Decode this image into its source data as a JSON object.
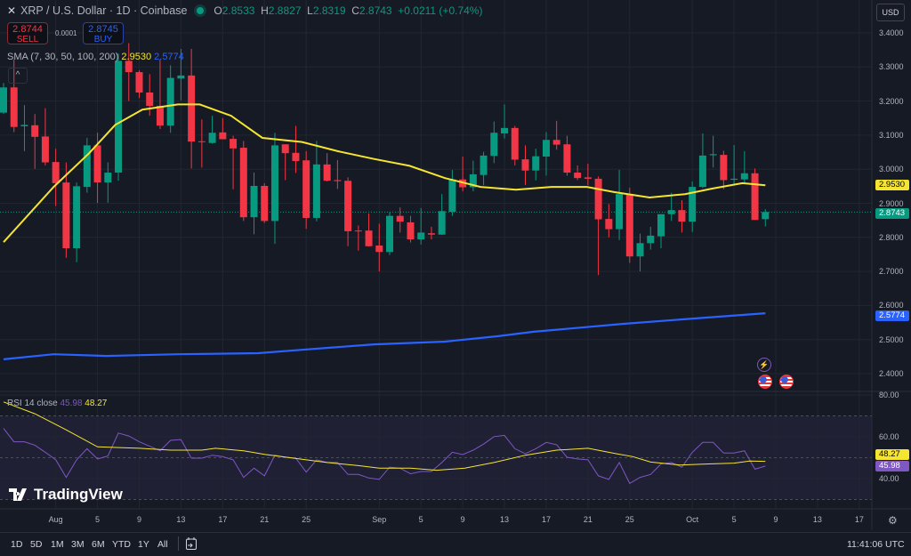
{
  "header": {
    "symbol_title": "XRP / U.S. Dollar · 1D · Coinbase",
    "ohlc": {
      "o_label": "O",
      "o": "2.8533",
      "h_label": "H",
      "h": "2.8827",
      "l_label": "L",
      "l": "2.8319",
      "c_label": "C",
      "c": "2.8743",
      "change": "+0.0211 (+0.74%)"
    },
    "sell": {
      "price": "2.8744",
      "label": "SELL"
    },
    "buy": {
      "price": "2.8745",
      "label": "BUY"
    },
    "spread": "0.0001",
    "sma_legend": {
      "label": "SMA (7, 30, 50, 100, 200)",
      "v1": "2.9530",
      "v2": "2.5774"
    },
    "collapse_icon": "chevron-up-icon",
    "currency": "USD"
  },
  "rsi_legend": {
    "label": "RSI 14 close",
    "rsi": "45.98",
    "ma": "48.27"
  },
  "colors": {
    "up": "#089981",
    "down": "#f23645",
    "sma_short": "#f5e531",
    "sma_long": "#2962ff",
    "rsi": "#7e57c2",
    "rsi_ma": "#f5e531",
    "background": "#161a25"
  },
  "price_axis": {
    "labels": [
      "3.4000",
      "3.3000",
      "3.2000",
      "3.1000",
      "3.0000",
      "2.9000",
      "2.8000",
      "2.7000",
      "2.6000",
      "2.5000",
      "2.4000"
    ],
    "tags": [
      {
        "value": "2.9530",
        "color": "#f5e531",
        "text_color": "#000000"
      },
      {
        "value": "2.8743",
        "color": "#089981",
        "text_color": "#ffffff"
      },
      {
        "value": "2.5774",
        "color": "#2962ff",
        "text_color": "#ffffff"
      }
    ]
  },
  "rsi_axis": {
    "labels": [
      "80.00",
      "60.00",
      "40.00"
    ],
    "tags": [
      {
        "value": "48.27",
        "color": "#f5e531",
        "text_color": "#000000"
      },
      {
        "value": "45.98",
        "color": "#7e57c2",
        "text_color": "#ffffff"
      }
    ]
  },
  "time_axis": {
    "ticks": [
      {
        "label": "Aug",
        "i": 5
      },
      {
        "label": "5",
        "i": 9
      },
      {
        "label": "9",
        "i": 13
      },
      {
        "label": "13",
        "i": 17
      },
      {
        "label": "17",
        "i": 21
      },
      {
        "label": "21",
        "i": 25
      },
      {
        "label": "25",
        "i": 29
      },
      {
        "label": "Sep",
        "i": 36
      },
      {
        "label": "5",
        "i": 40
      },
      {
        "label": "9",
        "i": 44
      },
      {
        "label": "13",
        "i": 48
      },
      {
        "label": "17",
        "i": 52
      },
      {
        "label": "21",
        "i": 56
      },
      {
        "label": "25",
        "i": 60
      },
      {
        "label": "Oct",
        "i": 66
      },
      {
        "label": "5",
        "i": 70
      },
      {
        "label": "9",
        "i": 74
      },
      {
        "label": "13",
        "i": 78
      },
      {
        "label": "17",
        "i": 82
      }
    ]
  },
  "bottom_bar": {
    "ranges": [
      "1D",
      "5D",
      "1M",
      "3M",
      "6M",
      "YTD",
      "1Y",
      "All"
    ],
    "time": "11:41:06 UTC",
    "calendar_icon": "calendar-goto-icon"
  },
  "logo": "TradingView",
  "events": [
    "lightning-icon",
    "us-flag-icon",
    "us-flag-icon"
  ],
  "chart_data": [
    {
      "type": "candlestick",
      "title": "XRP / U.S. Dollar · 1D · Coinbase",
      "x_start_date": "Jul 27",
      "ylim": [
        2.4,
        3.4
      ],
      "grid": true,
      "ohlc": [
        [
          3.166,
          3.253,
          3.162,
          3.24
        ],
        [
          3.24,
          3.322,
          3.109,
          3.124
        ],
        [
          3.126,
          3.188,
          3.053,
          3.13
        ],
        [
          3.129,
          3.162,
          3.001,
          3.095
        ],
        [
          3.096,
          3.179,
          3.011,
          3.02
        ],
        [
          3.021,
          3.06,
          2.892,
          2.959
        ],
        [
          2.961,
          3.02,
          2.74,
          2.768
        ],
        [
          2.768,
          2.961,
          2.727,
          2.95
        ],
        [
          2.948,
          3.092,
          2.931,
          3.07
        ],
        [
          3.07,
          3.107,
          2.901,
          2.961
        ],
        [
          2.961,
          3.02,
          2.902,
          2.99
        ],
        [
          2.99,
          3.34,
          2.966,
          3.318
        ],
        [
          3.318,
          3.37,
          3.2,
          3.285
        ],
        [
          3.285,
          3.29,
          3.209,
          3.225
        ],
        [
          3.225,
          3.279,
          3.157,
          3.186
        ],
        [
          3.186,
          3.322,
          3.118,
          3.128
        ],
        [
          3.128,
          3.305,
          3.107,
          3.268
        ],
        [
          3.266,
          3.353,
          3.202,
          3.275
        ],
        [
          3.275,
          3.353,
          3.002,
          3.081
        ],
        [
          3.082,
          3.146,
          3.005,
          3.08
        ],
        [
          3.077,
          3.157,
          3.075,
          3.107
        ],
        [
          3.108,
          3.15,
          3.088,
          3.088
        ],
        [
          3.089,
          3.098,
          2.941,
          3.061
        ],
        [
          3.063,
          3.083,
          2.848,
          2.859
        ],
        [
          2.859,
          2.99,
          2.809,
          2.951
        ],
        [
          2.951,
          2.959,
          2.842,
          2.848
        ],
        [
          2.848,
          3.107,
          2.781,
          3.07
        ],
        [
          3.073,
          3.073,
          2.968,
          3.047
        ],
        [
          3.048,
          3.127,
          2.989,
          3.024
        ],
        [
          3.026,
          3.053,
          2.825,
          2.857
        ],
        [
          2.857,
          3.083,
          2.847,
          3.014
        ],
        [
          3.014,
          3.047,
          2.964,
          2.966
        ],
        [
          2.968,
          3.027,
          2.942,
          2.965
        ],
        [
          2.966,
          2.976,
          2.774,
          2.818
        ],
        [
          2.82,
          2.835,
          2.761,
          2.818
        ],
        [
          2.82,
          2.87,
          2.773,
          2.774
        ],
        [
          2.776,
          2.84,
          2.7,
          2.757
        ],
        [
          2.757,
          2.874,
          2.748,
          2.863
        ],
        [
          2.863,
          2.888,
          2.814,
          2.846
        ],
        [
          2.844,
          2.863,
          2.785,
          2.794
        ],
        [
          2.794,
          2.886,
          2.779,
          2.814
        ],
        [
          2.812,
          2.831,
          2.794,
          2.808
        ],
        [
          2.808,
          2.927,
          2.807,
          2.877
        ],
        [
          2.875,
          2.998,
          2.863,
          2.97
        ],
        [
          2.97,
          3.037,
          2.935,
          2.947
        ],
        [
          2.947,
          3.025,
          2.935,
          2.985
        ],
        [
          2.983,
          3.051,
          2.953,
          3.04
        ],
        [
          3.039,
          3.14,
          3.018,
          3.107
        ],
        [
          3.105,
          3.19,
          3.09,
          3.121
        ],
        [
          3.121,
          3.127,
          3.011,
          3.028
        ],
        [
          3.029,
          3.07,
          2.954,
          2.996
        ],
        [
          2.996,
          3.06,
          2.967,
          3.038
        ],
        [
          3.037,
          3.109,
          2.981,
          3.086
        ],
        [
          3.086,
          3.142,
          3.057,
          3.072
        ],
        [
          3.073,
          3.098,
          2.981,
          2.99
        ],
        [
          2.99,
          3.011,
          2.968,
          2.974
        ],
        [
          2.976,
          3.016,
          2.953,
          2.972
        ],
        [
          2.972,
          2.979,
          2.689,
          2.853
        ],
        [
          2.854,
          2.898,
          2.8,
          2.824
        ],
        [
          2.824,
          2.998,
          2.792,
          2.927
        ],
        [
          2.927,
          2.946,
          2.725,
          2.744
        ],
        [
          2.744,
          2.811,
          2.7,
          2.783
        ],
        [
          2.783,
          2.831,
          2.764,
          2.805
        ],
        [
          2.803,
          2.868,
          2.768,
          2.868
        ],
        [
          2.868,
          2.931,
          2.848,
          2.88
        ],
        [
          2.88,
          2.909,
          2.814,
          2.846
        ],
        [
          2.846,
          2.964,
          2.816,
          2.948
        ],
        [
          2.948,
          3.105,
          2.944,
          3.04
        ],
        [
          3.041,
          3.098,
          3.005,
          3.044
        ],
        [
          3.042,
          3.054,
          2.941,
          2.968
        ],
        [
          2.969,
          3.071,
          2.955,
          2.972
        ],
        [
          2.97,
          3.053,
          2.957,
          2.988
        ],
        [
          2.988,
          3.002,
          2.851,
          2.851
        ],
        [
          2.8533,
          2.8827,
          2.8319,
          2.8743
        ]
      ],
      "last_price": 2.8743,
      "sma_short": [
        [
          0,
          2.786
        ],
        [
          4.8,
          2.948
        ],
        [
          8.2,
          3.047
        ],
        [
          10.7,
          3.13
        ],
        [
          13.3,
          3.175
        ],
        [
          16.7,
          3.19
        ],
        [
          18.8,
          3.19
        ],
        [
          21.8,
          3.157
        ],
        [
          24.8,
          3.092
        ],
        [
          28.6,
          3.08
        ],
        [
          32,
          3.053
        ],
        [
          35.5,
          3.03
        ],
        [
          38.9,
          3.01
        ],
        [
          42.3,
          2.974
        ],
        [
          45.7,
          2.948
        ],
        [
          49.1,
          2.94
        ],
        [
          52.5,
          2.948
        ],
        [
          55.9,
          2.948
        ],
        [
          58.5,
          2.933
        ],
        [
          61.9,
          2.917
        ],
        [
          65.3,
          2.927
        ],
        [
          67.9,
          2.943
        ],
        [
          70.8,
          2.959
        ],
        [
          73,
          2.953
        ]
      ],
      "sma_long": [
        [
          0,
          2.442
        ],
        [
          4.8,
          2.457
        ],
        [
          9.9,
          2.452
        ],
        [
          16.7,
          2.457
        ],
        [
          24.4,
          2.46
        ],
        [
          28.6,
          2.47
        ],
        [
          35.5,
          2.486
        ],
        [
          42.3,
          2.494
        ],
        [
          47.4,
          2.51
        ],
        [
          50.8,
          2.523
        ],
        [
          59.3,
          2.546
        ],
        [
          66.2,
          2.562
        ],
        [
          73,
          2.5774
        ]
      ]
    },
    {
      "type": "line",
      "title": "RSI 14 close",
      "ylim": [
        20,
        80
      ],
      "bands": [
        30,
        50,
        70
      ],
      "rsi": [
        64,
        57.6,
        57.6,
        56,
        52.6,
        49,
        40.6,
        49,
        54.3,
        49.4,
        50.8,
        61.8,
        60.4,
        57.6,
        55.5,
        53.3,
        58.3,
        58.7,
        49.8,
        49.8,
        51.2,
        50.5,
        49,
        40.6,
        45,
        41.3,
        51.2,
        50.2,
        49.8,
        43.1,
        49,
        47.7,
        47.7,
        42,
        42,
        40.3,
        39.6,
        45.5,
        45,
        42.3,
        43.4,
        43.4,
        47.7,
        52.6,
        51.5,
        53.6,
        56.5,
        60.1,
        60.7,
        54.3,
        51.9,
        54.3,
        57.3,
        56.2,
        50.2,
        49.4,
        49,
        41.3,
        39.6,
        47.7,
        37.7,
        40.6,
        42,
        47,
        47.7,
        45.5,
        52.6,
        57.3,
        57.3,
        52.2,
        52.2,
        53.3,
        44.5,
        45.98
      ],
      "rsi_ma": [
        [
          0,
          76.7
        ],
        [
          3,
          71
        ],
        [
          6,
          63.3
        ],
        [
          9,
          55.2
        ],
        [
          13,
          54.5
        ],
        [
          16,
          53.6
        ],
        [
          19,
          53.6
        ],
        [
          20.3,
          54.5
        ],
        [
          23,
          53.3
        ],
        [
          25,
          51.6
        ],
        [
          29,
          49
        ],
        [
          31,
          47.7
        ],
        [
          34,
          46.2
        ],
        [
          36,
          45
        ],
        [
          39,
          45
        ],
        [
          41.5,
          44
        ],
        [
          44.2,
          45
        ],
        [
          47,
          47.7
        ],
        [
          50,
          51.2
        ],
        [
          53,
          53.6
        ],
        [
          56,
          54.5
        ],
        [
          58.7,
          51.9
        ],
        [
          60.3,
          50.5
        ],
        [
          62,
          47.9
        ],
        [
          64.8,
          46.5
        ],
        [
          67.6,
          47
        ],
        [
          70,
          47.4
        ],
        [
          71.5,
          48.4
        ],
        [
          73,
          48.27
        ]
      ]
    }
  ]
}
